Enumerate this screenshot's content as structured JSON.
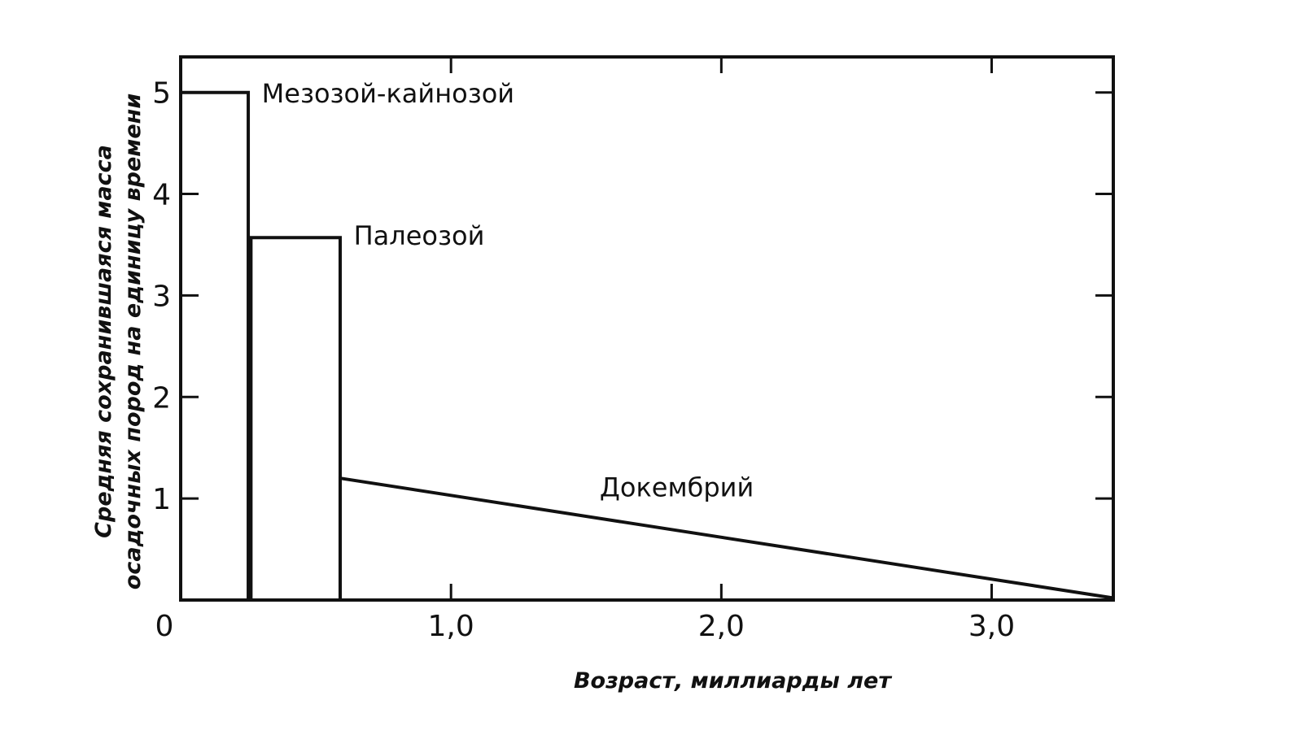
{
  "chart_data": {
    "type": "area",
    "title": "",
    "xlabel": "Возраст, миллиарды лет",
    "ylabel_lines": [
      "Средняя сохранившаяся масса",
      "осадочных пород на единицу времени"
    ],
    "xlim": [
      0,
      3.45
    ],
    "ylim": [
      0,
      5.35
    ],
    "x_ticks": [
      0,
      1.0,
      2.0,
      3.0
    ],
    "x_tick_labels": [
      "0",
      "1,0",
      "2,0",
      "3,0"
    ],
    "y_ticks": [
      1,
      2,
      3,
      4,
      5
    ],
    "y_tick_labels": [
      "1",
      "2",
      "3",
      "4",
      "5"
    ],
    "grid": false,
    "series": [
      {
        "name": "Мезозой-кайнозой",
        "shape": "bar",
        "x": [
          0,
          0.25
        ],
        "y": [
          5.0,
          5.0
        ],
        "label_at": [
          0.3,
          4.9
        ]
      },
      {
        "name": "Палеозой",
        "shape": "bar",
        "x": [
          0.26,
          0.59
        ],
        "y": [
          3.57,
          3.57
        ],
        "label_at": [
          0.64,
          3.5
        ]
      },
      {
        "name": "Докембрий",
        "shape": "sloped",
        "x": [
          0.59,
          3.45
        ],
        "y": [
          1.2,
          0.02
        ],
        "label_at": [
          1.55,
          1.02
        ]
      }
    ]
  }
}
